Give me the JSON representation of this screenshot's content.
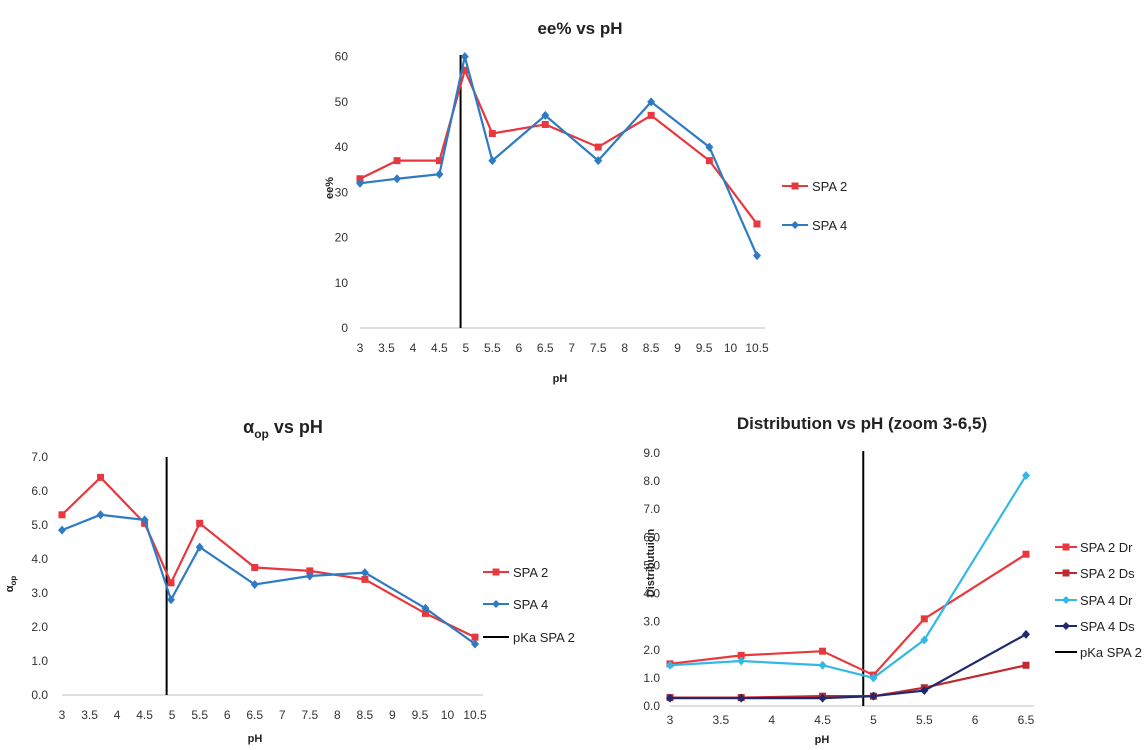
{
  "colors": {
    "spa2": "#e8383d",
    "spa4": "#2e7bc4",
    "spa2ds": "#c0282f",
    "spa4dr": "#34b9e6",
    "spa4ds": "#1f2a6e",
    "pka": "#000000"
  },
  "chart_data": [
    {
      "type": "line",
      "title": "ee% vs pH",
      "xlabel": "pH",
      "ylabel": "ee%",
      "categories": [
        "3",
        "3.5",
        "4",
        "4.5",
        "5",
        "5.5",
        "6",
        "6.5",
        "7",
        "7.5",
        "8",
        "8.5",
        "9",
        "9.5",
        "10",
        "10.5"
      ],
      "ylim": [
        0,
        65
      ],
      "yticks": [
        "0",
        "10",
        "20",
        "30",
        "40",
        "50",
        "60"
      ],
      "vline_x": 4.9,
      "series": [
        {
          "name": "SPA 2",
          "marker": "square",
          "points": [
            [
              3,
              33
            ],
            [
              3.7,
              37
            ],
            [
              4.5,
              37
            ],
            [
              4.98,
              57
            ],
            [
              5.5,
              43
            ],
            [
              6.5,
              45
            ],
            [
              7.5,
              40
            ],
            [
              8.5,
              47
            ],
            [
              9.6,
              37
            ],
            [
              10.5,
              23
            ]
          ]
        },
        {
          "name": "SPA 4",
          "marker": "diamond",
          "points": [
            [
              3,
              32
            ],
            [
              3.7,
              33
            ],
            [
              4.5,
              34
            ],
            [
              4.98,
              60
            ],
            [
              5.5,
              37
            ],
            [
              6.5,
              47
            ],
            [
              7.5,
              37
            ],
            [
              8.5,
              50
            ],
            [
              9.6,
              40
            ],
            [
              10.5,
              16
            ]
          ]
        }
      ],
      "legend": [
        "SPA 2",
        "SPA 4"
      ]
    },
    {
      "type": "line",
      "title_main": "α",
      "title_sub": "op",
      "title_rest": " vs pH",
      "xlabel": "pH",
      "ylabel_main": "α",
      "ylabel_sub": "op",
      "categories": [
        "3",
        "3.5",
        "4",
        "4.5",
        "5",
        "5.5",
        "6",
        "6.5",
        "7",
        "7.5",
        "8",
        "8.5",
        "9",
        "9.5",
        "10",
        "10.5"
      ],
      "ylim": [
        0,
        7
      ],
      "yticks": [
        "0.0",
        "1.0",
        "2.0",
        "3.0",
        "4.0",
        "5.0",
        "6.0",
        "7.0"
      ],
      "vline_x": 4.9,
      "series": [
        {
          "name": "SPA 2",
          "marker": "square",
          "points": [
            [
              3,
              5.3
            ],
            [
              3.7,
              6.4
            ],
            [
              4.5,
              5.05
            ],
            [
              4.98,
              3.3
            ],
            [
              5.5,
              5.05
            ],
            [
              6.5,
              3.75
            ],
            [
              7.5,
              3.65
            ],
            [
              8.5,
              3.4
            ],
            [
              9.6,
              2.4
            ],
            [
              10.5,
              1.7
            ]
          ]
        },
        {
          "name": "SPA 4",
          "marker": "diamond",
          "points": [
            [
              3,
              4.85
            ],
            [
              3.7,
              5.3
            ],
            [
              4.5,
              5.15
            ],
            [
              4.98,
              2.8
            ],
            [
              5.5,
              4.35
            ],
            [
              6.5,
              3.25
            ],
            [
              7.5,
              3.5
            ],
            [
              8.5,
              3.6
            ],
            [
              9.6,
              2.55
            ],
            [
              10.5,
              1.5
            ]
          ]
        }
      ],
      "legend": [
        "SPA 2",
        "SPA 4",
        "pKa SPA 2"
      ]
    },
    {
      "type": "line",
      "title": "Distribution vs pH (zoom 3-6,5)",
      "xlabel": "pH",
      "ylabel": "Distributuion",
      "categories": [
        "3",
        "3.5",
        "4",
        "4.5",
        "5",
        "5.5",
        "6",
        "6.5"
      ],
      "ylim": [
        0,
        9
      ],
      "yticks": [
        "0.0",
        "1.0",
        "2.0",
        "3.0",
        "4.0",
        "5.0",
        "6.0",
        "7.0",
        "8.0",
        "9.0"
      ],
      "vline_x": 4.9,
      "series": [
        {
          "name": "SPA 2 Dr",
          "marker": "square",
          "points": [
            [
              3,
              1.5
            ],
            [
              3.7,
              1.8
            ],
            [
              4.5,
              1.95
            ],
            [
              5,
              1.1
            ],
            [
              5.5,
              3.1
            ],
            [
              6.5,
              5.4
            ]
          ]
        },
        {
          "name": "SPA 2 Ds",
          "marker": "square",
          "points": [
            [
              3,
              0.3
            ],
            [
              3.7,
              0.3
            ],
            [
              4.5,
              0.35
            ],
            [
              5,
              0.35
            ],
            [
              5.5,
              0.65
            ],
            [
              6.5,
              1.45
            ]
          ]
        },
        {
          "name": "SPA 4 Dr",
          "marker": "diamond",
          "points": [
            [
              3,
              1.45
            ],
            [
              3.7,
              1.6
            ],
            [
              4.5,
              1.45
            ],
            [
              5,
              1.0
            ],
            [
              5.5,
              2.35
            ],
            [
              6.5,
              8.2
            ]
          ]
        },
        {
          "name": "SPA 4 Ds",
          "marker": "diamond",
          "points": [
            [
              3,
              0.28
            ],
            [
              3.7,
              0.28
            ],
            [
              4.5,
              0.28
            ],
            [
              5,
              0.35
            ],
            [
              5.5,
              0.55
            ],
            [
              6.5,
              2.55
            ]
          ]
        }
      ],
      "legend": [
        "SPA 2 Dr",
        "SPA 2 Ds",
        "SPA 4 Dr",
        "SPA 4 Ds",
        "pKa SPA 2"
      ]
    }
  ]
}
